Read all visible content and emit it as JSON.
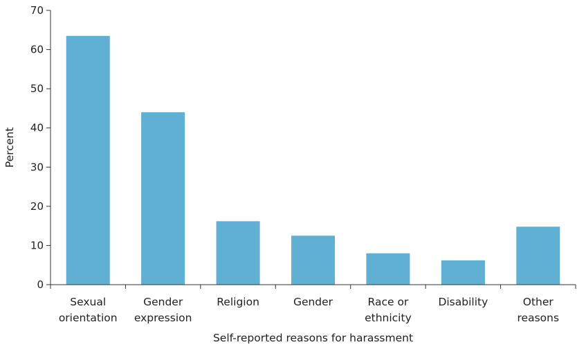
{
  "chart_data": {
    "type": "bar",
    "categories": [
      [
        "Sexual",
        "orientation"
      ],
      [
        "Gender",
        "expression"
      ],
      [
        "Religion"
      ],
      [
        "Gender"
      ],
      [
        "Race or",
        "ethnicity"
      ],
      [
        "Disability"
      ],
      [
        "Other",
        "reasons"
      ]
    ],
    "values": [
      63.5,
      44,
      16.2,
      12.5,
      8,
      6.2,
      14.8
    ],
    "xlabel": "Self-reported reasons for harassment",
    "ylabel": "Percent",
    "ylim": [
      0,
      70
    ],
    "yticks": [
      "0",
      "10",
      "20",
      "30",
      "40",
      "50",
      "60",
      "70"
    ],
    "grid": false,
    "bar_color": "#5fb0d2",
    "axis_color": "#333333"
  }
}
